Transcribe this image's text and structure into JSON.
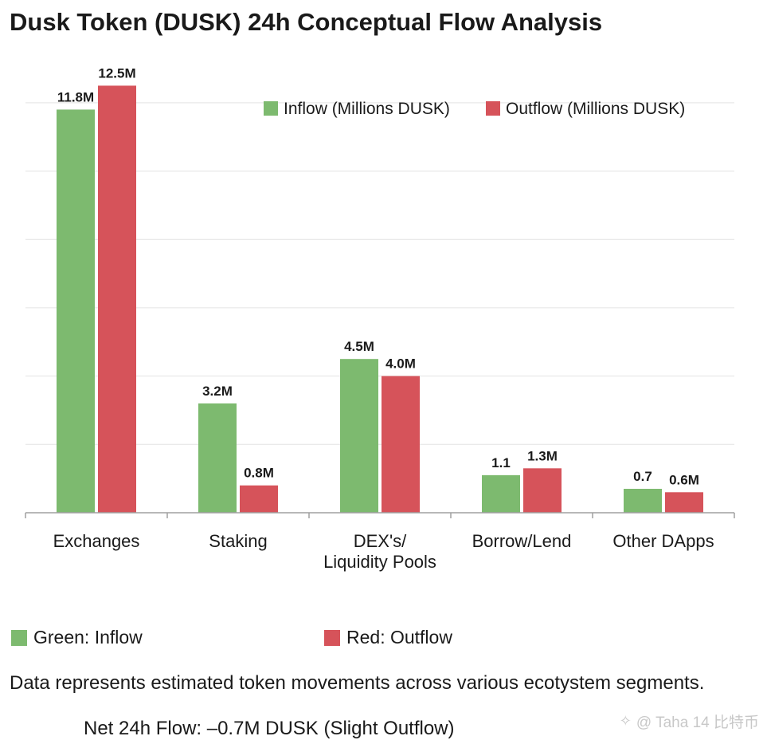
{
  "title": "Dusk Token (DUSK) 24h Conceptual Flow Analysis",
  "colors": {
    "inflow": "#7dba6f",
    "outflow": "#d6535a",
    "grid": "#e3e3e3",
    "axis": "#a0a0a0"
  },
  "chart_data": {
    "type": "bar",
    "categories": [
      "Exchanges",
      "Staking",
      "DEX's/\nLiquidity Pools",
      "Borrow/Lend",
      "Other DApps"
    ],
    "series": [
      {
        "name": "Inflow (Millions DUSK)",
        "values": [
          11.8,
          3.2,
          4.5,
          1.1,
          0.7
        ],
        "labels": [
          "11.8M",
          "3.2M",
          "4.5M",
          "1.1",
          "0.7"
        ]
      },
      {
        "name": "Outflow (Millions DUSK)",
        "values": [
          12.5,
          0.8,
          4.0,
          1.3,
          0.6
        ],
        "labels": [
          "12.5M",
          "0.8M",
          "4.0M",
          "1.3M",
          "0.6M"
        ]
      }
    ],
    "ylim": [
      0,
      13
    ],
    "grid": true,
    "legend": "top-right"
  },
  "key": {
    "green": "Green: Inflow",
    "red": "Red: Outflow"
  },
  "note": "Data represents estimated token movements across various ecotystem segments.",
  "net_flow": "Net 24h Flow: –0.7M DUSK (Slight Outflow)",
  "watermark": "@ Taha 14 比特币",
  "watermark_icon": "spark-icon"
}
